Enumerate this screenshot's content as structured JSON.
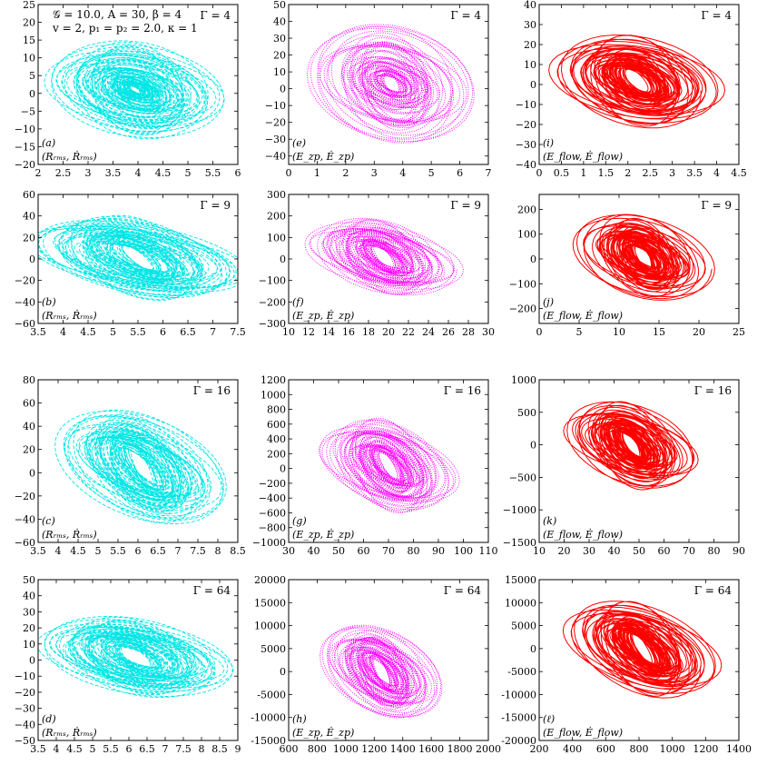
{
  "figure": {
    "params_line1": "𝒢 = 10.0, A = 30, β = 4",
    "params_line2": "v = 2, p₁ = p₂ = 2.0, κ = 1"
  },
  "colors": {
    "rms": "#00e5e5",
    "zp": "#ff00ff",
    "flow": "#ff0000"
  },
  "chart_data": [
    {
      "type": "line",
      "id": "a",
      "panel_label": "(a)",
      "pair_label": "(Rᵣₘₛ, Ṙᵣₘₛ)",
      "gamma_label": "Γ = 4",
      "series_color": "rms",
      "style": "dashed",
      "xlim": [
        2,
        6
      ],
      "ylim": [
        -20,
        25
      ],
      "xticks": [
        2,
        2.5,
        3,
        3.5,
        4,
        4.5,
        5,
        5.5,
        6
      ],
      "xticklabels": [
        "2",
        "2.5",
        "3",
        "3.5",
        "4",
        "4.5",
        "5",
        "5.5",
        "6"
      ],
      "yticks": [
        -20,
        -15,
        -10,
        -5,
        0,
        5,
        10,
        15,
        20,
        25
      ],
      "yticklabels": [
        "−20",
        "−15",
        "−10",
        "−5",
        "0",
        "5",
        "10",
        "15",
        "20",
        "25"
      ],
      "attractor": {
        "center": [
          3.95,
          1.0
        ],
        "loops": [
          {
            "rx": 1.6,
            "ry": 12.5,
            "tilt": -2.5
          },
          {
            "rx": 0.45,
            "ry": 2.5,
            "tilt": -1
          },
          {
            "rx": 1.2,
            "ry": 8,
            "tilt": -2
          }
        ]
      }
    },
    {
      "type": "line",
      "id": "e",
      "panel_label": "(e)",
      "pair_label": "(E_zp, Ė_zp)",
      "gamma_label": "Γ = 4",
      "series_color": "zp",
      "style": "dotted",
      "xlim": [
        0,
        7
      ],
      "ylim": [
        -45,
        50
      ],
      "xticks": [
        0,
        1,
        2,
        3,
        4,
        5,
        6,
        7
      ],
      "xticklabels": [
        "0",
        "1",
        "2",
        "3",
        "4",
        "5",
        "6",
        "7"
      ],
      "yticks": [
        -40,
        -30,
        -20,
        -10,
        0,
        10,
        20,
        30,
        40,
        50
      ],
      "yticklabels": [
        "−40",
        "−30",
        "−20",
        "−10",
        "0",
        "10",
        "20",
        "30",
        "40",
        "50"
      ],
      "attractor": {
        "center": [
          3.6,
          3
        ],
        "loops": [
          {
            "rx": 2.6,
            "ry": 33,
            "tilt": -6
          },
          {
            "rx": 1.3,
            "ry": 14,
            "tilt": -3
          }
        ]
      }
    },
    {
      "type": "line",
      "id": "i",
      "panel_label": "(i)",
      "pair_label": "(E_flow, Ė_flow)",
      "gamma_label": "Γ = 4",
      "series_color": "flow",
      "style": "solid",
      "xlim": [
        0,
        4.5
      ],
      "ylim": [
        -40,
        40
      ],
      "xticks": [
        0,
        0.5,
        1,
        1.5,
        2,
        2.5,
        3,
        3.5,
        4,
        4.5
      ],
      "xticklabels": [
        "0",
        "0.5",
        "1",
        "1.5",
        "2",
        "2.5",
        "3",
        "3.5",
        "4",
        "4.5"
      ],
      "yticks": [
        -40,
        -30,
        -20,
        -10,
        0,
        10,
        20,
        30,
        40
      ],
      "yticklabels": [
        "−40",
        "−30",
        "−20",
        "−10",
        "0",
        "10",
        "20",
        "30",
        "40"
      ],
      "attractor": {
        "center": [
          2.2,
          2
        ],
        "loops": [
          {
            "rx": 1.75,
            "ry": 22,
            "tilt": -5
          },
          {
            "rx": 1.3,
            "ry": 16,
            "tilt": -4
          }
        ]
      }
    },
    {
      "type": "line",
      "id": "b",
      "panel_label": "(b)",
      "pair_label": "(Rᵣₘₛ, Ṙᵣₘₛ)",
      "gamma_label": "Γ = 9",
      "series_color": "rms",
      "style": "dashed",
      "xlim": [
        3.5,
        7.5
      ],
      "ylim": [
        -60,
        60
      ],
      "xticks": [
        3.5,
        4,
        4.5,
        5,
        5.5,
        6,
        6.5,
        7,
        7.5
      ],
      "xticklabels": [
        "3.5",
        "4",
        "4.5",
        "5",
        "5.5",
        "6",
        "6.5",
        "7",
        "7.5"
      ],
      "yticks": [
        -60,
        -40,
        -20,
        0,
        20,
        40,
        60
      ],
      "yticklabels": [
        "−60",
        "−40",
        "−20",
        "0",
        "20",
        "40",
        "60"
      ],
      "attractor": {
        "center": [
          5.5,
          1
        ],
        "loops": [
          {
            "rx": 2.0,
            "ry": 34,
            "tilt": -14
          },
          {
            "rx": 1.5,
            "ry": 24,
            "tilt": -10
          }
        ]
      }
    },
    {
      "type": "line",
      "id": "f",
      "panel_label": "(f)",
      "pair_label": "(E_zp, Ė_zp)",
      "gamma_label": "Γ = 9",
      "series_color": "zp",
      "style": "dotted",
      "xlim": [
        10,
        30
      ],
      "ylim": [
        -300,
        300
      ],
      "xticks": [
        10,
        12,
        14,
        16,
        18,
        20,
        22,
        24,
        26,
        28,
        30
      ],
      "xticklabels": [
        "10",
        "12",
        "14",
        "16",
        "18",
        "20",
        "22",
        "24",
        "26",
        "28",
        "30"
      ],
      "yticks": [
        -300,
        -200,
        -100,
        0,
        100,
        200,
        300
      ],
      "yticklabels": [
        "−300",
        "−200",
        "−100",
        "0",
        "100",
        "200",
        "300"
      ],
      "attractor": {
        "center": [
          19.5,
          10
        ],
        "loops": [
          {
            "rx": 7,
            "ry": 160,
            "tilt": -60
          },
          {
            "rx": 5,
            "ry": 120,
            "tilt": -40
          }
        ]
      }
    },
    {
      "type": "line",
      "id": "j",
      "panel_label": "(j)",
      "pair_label": "(E_flow, Ė_flow)",
      "gamma_label": "Γ = 9",
      "series_color": "flow",
      "style": "solid",
      "xlim": [
        0,
        25
      ],
      "ylim": [
        -260,
        260
      ],
      "xticks": [
        0,
        5,
        10,
        15,
        20,
        25
      ],
      "xticklabels": [
        "0",
        "5",
        "10",
        "15",
        "20",
        "25"
      ],
      "yticks": [
        -200,
        -100,
        0,
        100,
        200
      ],
      "yticklabels": [
        "−200",
        "−100",
        "0",
        "100",
        "200"
      ],
      "attractor": {
        "center": [
          13,
          10
        ],
        "loops": [
          {
            "rx": 8,
            "ry": 160,
            "tilt": -50
          },
          {
            "rx": 5,
            "ry": 110,
            "tilt": -35
          }
        ]
      }
    },
    {
      "type": "line",
      "id": "c",
      "panel_label": "(c)",
      "pair_label": "(Rᵣₘₛ, Ṙᵣₘₛ)",
      "gamma_label": "Γ = 16",
      "series_color": "rms",
      "style": "dashed",
      "xlim": [
        3.5,
        8.5
      ],
      "ylim": [
        -60,
        80
      ],
      "xticks": [
        3.5,
        4,
        4.5,
        5,
        5.5,
        6,
        6.5,
        7,
        7.5,
        8,
        8.5
      ],
      "xticklabels": [
        "3.5",
        "4",
        "4.5",
        "5",
        "5.5",
        "6",
        "6.5",
        "7",
        "7.5",
        "8",
        "8.5"
      ],
      "yticks": [
        -60,
        -40,
        -20,
        0,
        20,
        40,
        60,
        80
      ],
      "yticklabels": [
        "−60",
        "−40",
        "−20",
        "0",
        "20",
        "40",
        "60",
        "80"
      ],
      "attractor": {
        "center": [
          6.1,
          5
        ],
        "loops": [
          {
            "rx": 1.9,
            "ry": 42,
            "tilt": -18
          },
          {
            "rx": 1.4,
            "ry": 30,
            "tilt": -14
          }
        ]
      }
    },
    {
      "type": "line",
      "id": "g",
      "panel_label": "(g)",
      "pair_label": "(E_zp, Ė_zp)",
      "gamma_label": "Γ = 16",
      "series_color": "zp",
      "style": "dotted",
      "xlim": [
        30,
        110
      ],
      "ylim": [
        -1000,
        1200
      ],
      "xticks": [
        30,
        40,
        50,
        60,
        70,
        80,
        90,
        100,
        110
      ],
      "xticklabels": [
        "30",
        "40",
        "50",
        "60",
        "70",
        "80",
        "90",
        "100",
        "110"
      ],
      "yticks": [
        -1000,
        -800,
        -600,
        -400,
        -200,
        0,
        200,
        400,
        600,
        800,
        1000,
        1200
      ],
      "yticklabels": [
        "−1000",
        "−800",
        "−600",
        "−400",
        "−200",
        "0",
        "200",
        "400",
        "600",
        "800",
        "1000",
        "1200"
      ],
      "attractor": {
        "center": [
          70,
          40
        ],
        "loops": [
          {
            "rx": 25,
            "ry": 580,
            "tilt": -200
          },
          {
            "rx": 18,
            "ry": 420,
            "tilt": -150
          }
        ]
      }
    },
    {
      "type": "line",
      "id": "k",
      "panel_label": "(k)",
      "pair_label": "(E_flow, Ė_flow)",
      "gamma_label": "Γ = 16",
      "series_color": "flow",
      "style": "solid",
      "xlim": [
        10,
        90
      ],
      "ylim": [
        -1500,
        1000
      ],
      "xticks": [
        10,
        20,
        30,
        40,
        50,
        60,
        70,
        80,
        90
      ],
      "xticklabels": [
        "10",
        "20",
        "30",
        "40",
        "50",
        "60",
        "70",
        "80",
        "90"
      ],
      "yticks": [
        -1500,
        -1000,
        -500,
        0,
        500,
        1000
      ],
      "yticklabels": [
        "−1500",
        "−1000",
        "−500",
        "0",
        "500",
        "1000"
      ],
      "attractor": {
        "center": [
          47,
          0
        ],
        "loops": [
          {
            "rx": 25,
            "ry": 620,
            "tilt": -220
          },
          {
            "rx": 17,
            "ry": 430,
            "tilt": -160
          }
        ]
      }
    },
    {
      "type": "line",
      "id": "d",
      "panel_label": "(d)",
      "pair_label": "(Rᵣₘₛ, Ṙᵣₘₛ)",
      "gamma_label": "Γ = 64",
      "series_color": "rms",
      "style": "dashed",
      "xlim": [
        3.5,
        9
      ],
      "ylim": [
        -50,
        50
      ],
      "xticks": [
        3.5,
        4,
        4.5,
        5,
        5.5,
        6,
        6.5,
        7,
        7.5,
        8,
        8.5,
        9
      ],
      "xticklabels": [
        "3.5",
        "4",
        "4.5",
        "5",
        "5.5",
        "6",
        "6.5",
        "7",
        "7.5",
        "8",
        "8.5",
        "9"
      ],
      "yticks": [
        -50,
        -40,
        -30,
        -20,
        -10,
        0,
        10,
        20,
        30,
        40,
        50
      ],
      "yticklabels": [
        "−50",
        "−40",
        "−30",
        "−20",
        "−10",
        "0",
        "10",
        "20",
        "30",
        "40",
        "50"
      ],
      "attractor": {
        "center": [
          6.2,
          2
        ],
        "loops": [
          {
            "rx": 2.4,
            "ry": 22,
            "tilt": -8
          },
          {
            "rx": 1.8,
            "ry": 16,
            "tilt": -5
          }
        ]
      }
    },
    {
      "type": "line",
      "id": "h",
      "panel_label": "(h)",
      "pair_label": "(E_zp, Ė_zp)",
      "gamma_label": "Γ = 64",
      "series_color": "zp",
      "style": "dotted",
      "xlim": [
        600,
        2000
      ],
      "ylim": [
        -15000,
        20000
      ],
      "xticks": [
        600,
        800,
        1000,
        1200,
        1400,
        1600,
        1800,
        2000
      ],
      "xticklabels": [
        "600",
        "800",
        "1000",
        "1200",
        "1400",
        "1600",
        "1800",
        "2000"
      ],
      "yticks": [
        -15000,
        -10000,
        -5000,
        0,
        5000,
        10000,
        15000,
        20000
      ],
      "yticklabels": [
        "-15000",
        "-10000",
        "-5000",
        "0",
        "5000",
        "10000",
        "15000",
        "20000"
      ],
      "attractor": {
        "center": [
          1250,
          0
        ],
        "loops": [
          {
            "rx": 380,
            "ry": 9000,
            "tilt": -3500
          },
          {
            "rx": 280,
            "ry": 6500,
            "tilt": -2500
          }
        ]
      }
    },
    {
      "type": "line",
      "id": "l",
      "panel_label": "(ℓ)",
      "pair_label": "(E_flow, Ė_flow)",
      "gamma_label": "Γ = 64",
      "series_color": "flow",
      "style": "solid",
      "xlim": [
        200,
        1400
      ],
      "ylim": [
        -20000,
        15000
      ],
      "xticks": [
        200,
        400,
        600,
        800,
        1000,
        1200,
        1400
      ],
      "xticklabels": [
        "200",
        "400",
        "600",
        "800",
        "1000",
        "1200",
        "1400"
      ],
      "yticks": [
        -20000,
        -15000,
        -10000,
        -5000,
        0,
        5000,
        10000,
        15000
      ],
      "yticklabels": [
        "-20000",
        "-15000",
        "-10000",
        "-5000",
        "0",
        "5000",
        "10000",
        "15000"
      ],
      "attractor": {
        "center": [
          820,
          0
        ],
        "loops": [
          {
            "rx": 420,
            "ry": 9500,
            "tilt": -3800
          },
          {
            "rx": 300,
            "ry": 7000,
            "tilt": -2800
          }
        ]
      }
    }
  ]
}
